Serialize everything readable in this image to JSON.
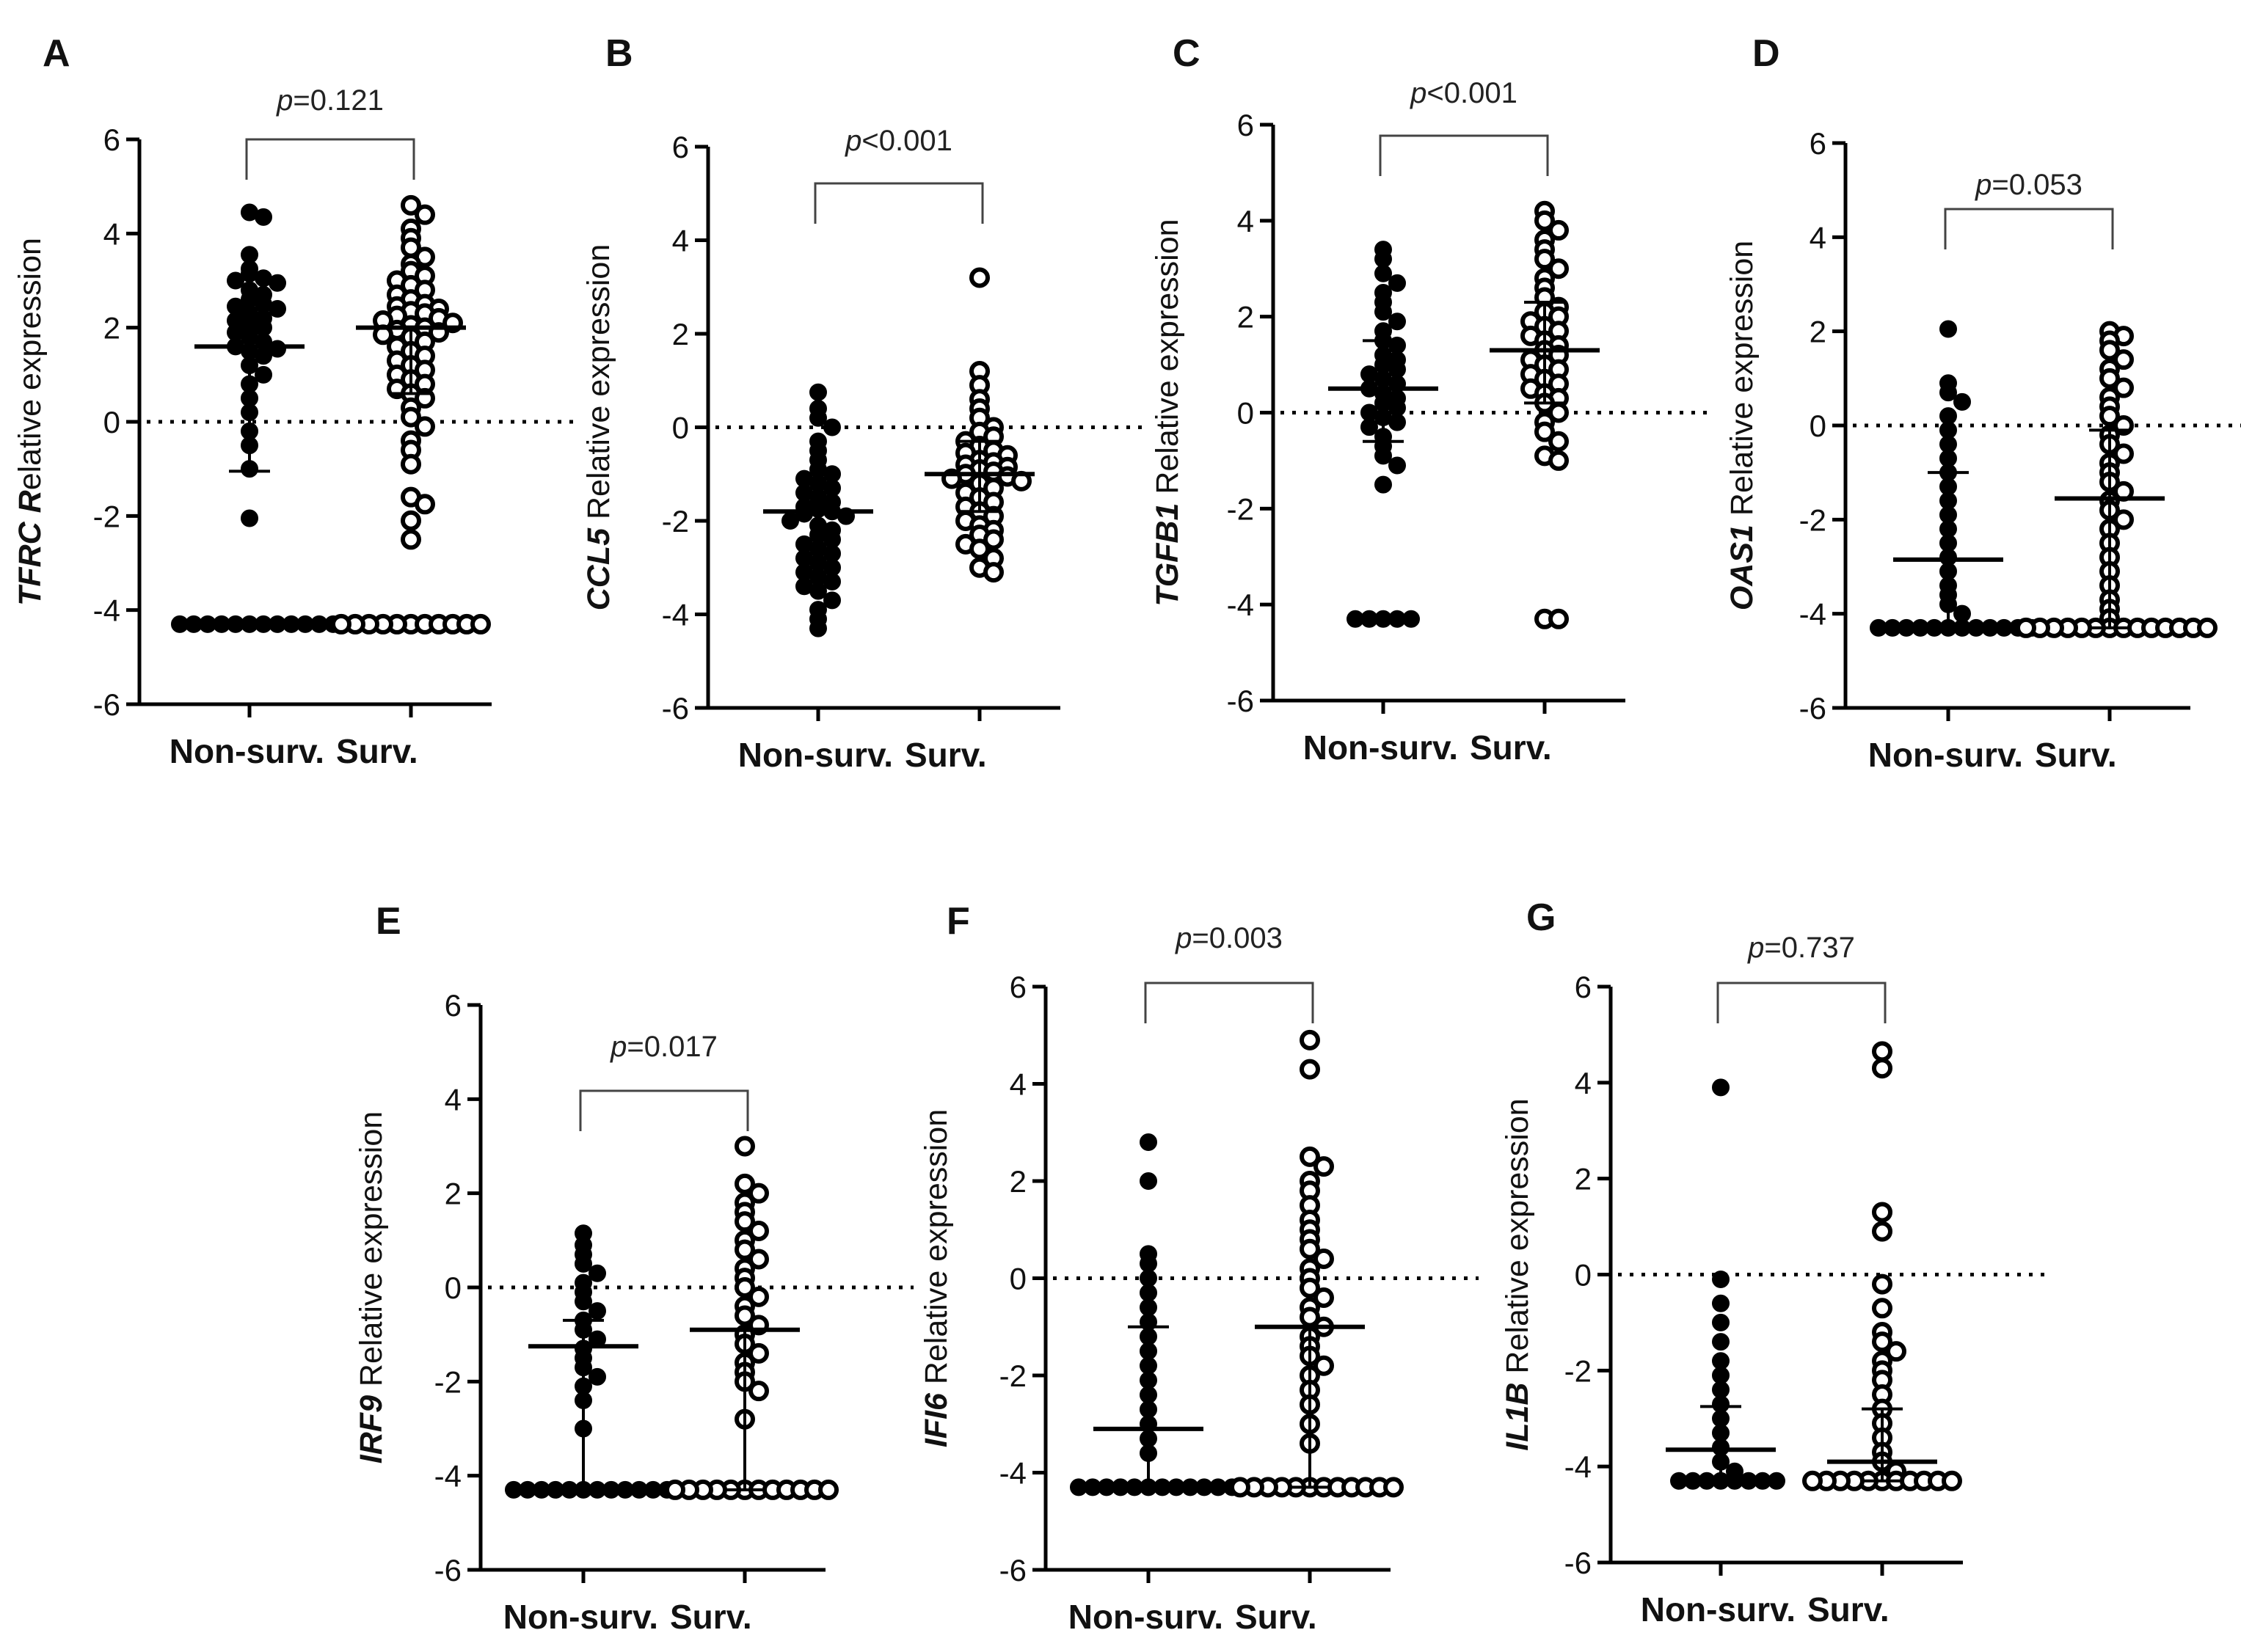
{
  "chart_data": [
    {
      "panel": "A",
      "type": "scatter",
      "gene": "TFRC R",
      "ylabel_suffix": "elative expression",
      "p_label": "p",
      "p_value": "=0.121",
      "ylim": [
        -6,
        6
      ],
      "yticks": [
        "6",
        "4",
        "2",
        "0",
        "-2",
        "-4",
        "-6"
      ],
      "categories": [
        "Non-surv.",
        "Surv."
      ],
      "series": [
        {
          "name": "Non-surv.",
          "marker": "filled",
          "mean": 1.6,
          "sd_low": -1.05,
          "sd_high": 1.6,
          "values": [
            4.45,
            4.35,
            3.55,
            3.25,
            3.15,
            3.05,
            3.0,
            2.95,
            2.8,
            2.7,
            2.6,
            2.5,
            2.45,
            2.4,
            2.3,
            2.2,
            2.15,
            2.05,
            2.0,
            1.9,
            1.8,
            1.7,
            1.6,
            1.55,
            1.5,
            1.4,
            1.2,
            1.0,
            0.8,
            0.5,
            0.2,
            -0.2,
            -0.5,
            -1.0,
            -2.05,
            -4.3,
            -4.3,
            -4.3,
            -4.3,
            -4.3,
            -4.3,
            -4.3,
            -4.3,
            -4.3,
            -4.3,
            -4.3,
            -4.3
          ]
        },
        {
          "name": "Surv.",
          "marker": "open",
          "mean": 2.0,
          "sd_low": 0.6,
          "sd_high": 2.0,
          "values": [
            4.6,
            4.4,
            4.1,
            3.9,
            3.7,
            3.5,
            3.35,
            3.2,
            3.1,
            3.0,
            2.9,
            2.8,
            2.7,
            2.6,
            2.5,
            2.45,
            2.4,
            2.35,
            2.3,
            2.25,
            2.2,
            2.15,
            2.1,
            2.05,
            2.0,
            1.95,
            1.9,
            1.85,
            1.8,
            1.7,
            1.6,
            1.5,
            1.4,
            1.3,
            1.2,
            1.1,
            1.0,
            0.9,
            0.8,
            0.7,
            0.6,
            0.5,
            0.3,
            0.1,
            -0.1,
            -0.4,
            -0.6,
            -0.9,
            -1.6,
            -1.75,
            -2.1,
            -2.5,
            -4.3,
            -4.3,
            -4.3,
            -4.3,
            -4.3,
            -4.3,
            -4.3,
            -4.3,
            -4.3,
            -4.3,
            -4.3
          ]
        }
      ]
    },
    {
      "panel": "B",
      "type": "scatter",
      "gene": "CCL5",
      "ylabel_suffix": " Relative expression",
      "p_label": "p",
      "p_value": "<0.001",
      "ylim": [
        -6,
        6
      ],
      "yticks": [
        "6",
        "4",
        "2",
        "0",
        "-2",
        "-4",
        "-6"
      ],
      "categories": [
        "Non-surv.",
        "Surv."
      ],
      "series": [
        {
          "name": "Non-surv.",
          "marker": "filled",
          "mean": -1.8,
          "sd_low": -2.4,
          "sd_high": -1.2,
          "values": [
            0.75,
            0.4,
            0.2,
            0.0,
            -0.3,
            -0.5,
            -0.7,
            -0.9,
            -1.0,
            -1.1,
            -1.2,
            -1.3,
            -1.4,
            -1.5,
            -1.6,
            -1.7,
            -1.75,
            -1.8,
            -1.85,
            -1.9,
            -2.0,
            -2.1,
            -2.2,
            -2.3,
            -2.4,
            -2.5,
            -2.6,
            -2.7,
            -2.8,
            -2.9,
            -3.0,
            -3.1,
            -3.2,
            -3.3,
            -3.4,
            -3.5,
            -3.7,
            -3.9,
            -4.1,
            -4.3
          ]
        },
        {
          "name": "Surv.",
          "marker": "open",
          "mean": -1.0,
          "sd_low": -1.8,
          "sd_high": -0.3,
          "values": [
            3.2,
            1.2,
            0.9,
            0.6,
            0.4,
            0.2,
            0.0,
            -0.1,
            -0.2,
            -0.3,
            -0.4,
            -0.5,
            -0.55,
            -0.6,
            -0.7,
            -0.75,
            -0.8,
            -0.85,
            -0.9,
            -0.95,
            -1.0,
            -1.05,
            -1.1,
            -1.15,
            -1.2,
            -1.3,
            -1.4,
            -1.5,
            -1.6,
            -1.7,
            -1.8,
            -1.9,
            -2.0,
            -2.1,
            -2.2,
            -2.3,
            -2.4,
            -2.5,
            -2.6,
            -2.8,
            -3.0,
            -3.1
          ]
        }
      ]
    },
    {
      "panel": "C",
      "type": "scatter",
      "gene": "TGFB1",
      "ylabel_suffix": " Relative expression",
      "p_label": "p",
      "p_value": "<0.001",
      "ylim": [
        -6,
        6
      ],
      "yticks": [
        "6",
        "4",
        "2",
        "0",
        "-2",
        "-4",
        "-6"
      ],
      "categories": [
        "Non-surv.",
        "Surv."
      ],
      "series": [
        {
          "name": "Non-surv.",
          "marker": "filled",
          "mean": 0.5,
          "sd_low": -0.6,
          "sd_high": 1.5,
          "values": [
            3.4,
            3.2,
            2.9,
            2.7,
            2.5,
            2.3,
            2.1,
            1.9,
            1.7,
            1.5,
            1.4,
            1.2,
            1.1,
            1.0,
            0.9,
            0.8,
            0.7,
            0.6,
            0.5,
            0.4,
            0.3,
            0.2,
            0.1,
            0.0,
            -0.1,
            -0.2,
            -0.3,
            -0.5,
            -0.7,
            -0.9,
            -1.1,
            -1.5,
            -4.3,
            -4.3,
            -4.3,
            -4.3,
            -4.3
          ]
        },
        {
          "name": "Surv.",
          "marker": "open",
          "mean": 1.3,
          "sd_low": 0.2,
          "sd_high": 2.3,
          "values": [
            4.2,
            4.0,
            3.8,
            3.6,
            3.4,
            3.2,
            3.0,
            2.8,
            2.6,
            2.4,
            2.2,
            2.1,
            2.0,
            1.9,
            1.8,
            1.7,
            1.6,
            1.5,
            1.4,
            1.3,
            1.2,
            1.1,
            1.0,
            0.9,
            0.8,
            0.7,
            0.6,
            0.5,
            0.4,
            0.3,
            0.2,
            0.0,
            -0.2,
            -0.4,
            -0.6,
            -0.9,
            -1.0,
            -4.3,
            -4.3
          ]
        }
      ]
    },
    {
      "panel": "D",
      "type": "scatter",
      "gene": "OAS1",
      "ylabel_suffix": " Relative expression",
      "p_label": "p",
      "p_value": "=0.053",
      "ylim": [
        -6,
        6
      ],
      "yticks": [
        "6",
        "4",
        "2",
        "0",
        "-2",
        "-4",
        "-6"
      ],
      "categories": [
        "Non-surv.",
        "Surv."
      ],
      "series": [
        {
          "name": "Non-surv.",
          "marker": "filled",
          "mean": -2.85,
          "sd_low": -4.3,
          "sd_high": -1.0,
          "values": [
            2.05,
            0.9,
            0.7,
            0.5,
            0.2,
            -0.1,
            -0.4,
            -0.7,
            -1.0,
            -1.3,
            -1.6,
            -1.9,
            -2.2,
            -2.5,
            -2.8,
            -3.1,
            -3.4,
            -3.6,
            -3.8,
            -4.0,
            -4.3,
            -4.3,
            -4.3,
            -4.3,
            -4.3,
            -4.3,
            -4.3,
            -4.3,
            -4.3,
            -4.3,
            -4.3,
            -4.3
          ]
        },
        {
          "name": "Surv.",
          "marker": "open",
          "mean": -1.55,
          "sd_low": -4.3,
          "sd_high": -0.1,
          "values": [
            2.0,
            1.9,
            1.8,
            1.6,
            1.4,
            1.2,
            1.0,
            0.8,
            0.6,
            0.4,
            0.2,
            0.0,
            -0.2,
            -0.4,
            -0.6,
            -0.8,
            -1.0,
            -1.2,
            -1.4,
            -1.6,
            -1.8,
            -2.0,
            -2.2,
            -2.5,
            -2.8,
            -3.1,
            -3.4,
            -3.7,
            -3.9,
            -4.1,
            -4.3,
            -4.3,
            -4.3,
            -4.3,
            -4.3,
            -4.3,
            -4.3,
            -4.3,
            -4.3,
            -4.3,
            -4.3,
            -4.3,
            -4.3,
            -4.3
          ]
        }
      ]
    },
    {
      "panel": "E",
      "type": "scatter",
      "gene": "IRF9",
      "ylabel_suffix": " Relative expression",
      "p_label": "p",
      "p_value": "=0.017",
      "ylim": [
        -6,
        6
      ],
      "yticks": [
        "6",
        "4",
        "2",
        "0",
        "-2",
        "-4",
        "-6"
      ],
      "categories": [
        "Non-surv.",
        "Surv."
      ],
      "series": [
        {
          "name": "Non-surv.",
          "marker": "filled",
          "mean": -1.25,
          "sd_low": -4.3,
          "sd_high": -0.7,
          "values": [
            1.15,
            0.9,
            0.7,
            0.5,
            0.3,
            0.1,
            -0.1,
            -0.3,
            -0.5,
            -0.7,
            -0.9,
            -1.1,
            -1.3,
            -1.5,
            -1.7,
            -1.9,
            -2.1,
            -2.4,
            -3.0,
            -4.3,
            -4.3,
            -4.3,
            -4.3,
            -4.3,
            -4.3,
            -4.3,
            -4.3,
            -4.3,
            -4.3,
            -4.3,
            -4.3
          ]
        },
        {
          "name": "Surv.",
          "marker": "open",
          "mean": -0.9,
          "sd_low": -4.3,
          "sd_high": -0.9,
          "values": [
            3.0,
            2.2,
            2.0,
            1.8,
            1.6,
            1.4,
            1.2,
            1.0,
            0.8,
            0.6,
            0.4,
            0.2,
            0.0,
            -0.2,
            -0.4,
            -0.6,
            -0.8,
            -1.0,
            -1.2,
            -1.4,
            -1.6,
            -1.8,
            -2.0,
            -2.2,
            -2.8,
            -4.3,
            -4.3,
            -4.3,
            -4.3,
            -4.3,
            -4.3,
            -4.3,
            -4.3,
            -4.3,
            -4.3,
            -4.3,
            -4.3
          ]
        }
      ]
    },
    {
      "panel": "F",
      "type": "scatter",
      "gene": "IFI6",
      "ylabel_suffix": " Relative expression",
      "p_label": "p",
      "p_value": "=0.003",
      "ylim": [
        -6,
        6
      ],
      "yticks": [
        "6",
        "4",
        "2",
        "0",
        "-2",
        "-4",
        "-6"
      ],
      "categories": [
        "Non-surv.",
        "Surv."
      ],
      "series": [
        {
          "name": "Non-surv.",
          "marker": "filled",
          "mean": -3.1,
          "sd_low": -4.3,
          "sd_high": -1.0,
          "values": [
            2.8,
            2.0,
            0.5,
            0.3,
            0.0,
            -0.3,
            -0.6,
            -0.9,
            -1.2,
            -1.5,
            -1.8,
            -2.1,
            -2.4,
            -2.7,
            -3.0,
            -3.3,
            -3.6,
            -4.3,
            -4.3,
            -4.3,
            -4.3,
            -4.3,
            -4.3,
            -4.3,
            -4.3,
            -4.3,
            -4.3,
            -4.3,
            -4.3
          ]
        },
        {
          "name": "Surv.",
          "marker": "open",
          "mean": -1.0,
          "sd_low": -4.3,
          "sd_high": -1.0,
          "values": [
            4.9,
            4.3,
            2.5,
            2.3,
            2.0,
            1.8,
            1.5,
            1.2,
            1.0,
            0.8,
            0.6,
            0.4,
            0.2,
            0.0,
            -0.2,
            -0.4,
            -0.6,
            -0.8,
            -1.0,
            -1.2,
            -1.4,
            -1.6,
            -1.8,
            -2.0,
            -2.3,
            -2.6,
            -3.0,
            -3.4,
            -4.3,
            -4.3,
            -4.3,
            -4.3,
            -4.3,
            -4.3,
            -4.3,
            -4.3,
            -4.3,
            -4.3,
            -4.3,
            -4.3
          ]
        }
      ]
    },
    {
      "panel": "G",
      "type": "scatter",
      "gene": "IL1B",
      "ylabel_suffix": " Relative expression",
      "p_label": "p",
      "p_value": "=0.737",
      "ylim": [
        -6,
        6
      ],
      "yticks": [
        "6",
        "4",
        "2",
        "0",
        "-2",
        "-4",
        "-6"
      ],
      "categories": [
        "Non-surv.",
        "Surv."
      ],
      "series": [
        {
          "name": "Non-surv.",
          "marker": "filled",
          "mean": -3.65,
          "sd_low": -4.3,
          "sd_high": -2.75,
          "values": [
            3.9,
            -0.1,
            -0.6,
            -1.0,
            -1.4,
            -1.8,
            -2.1,
            -2.4,
            -2.7,
            -3.0,
            -3.3,
            -3.6,
            -3.9,
            -4.1,
            -4.3,
            -4.3,
            -4.3,
            -4.3,
            -4.3,
            -4.3,
            -4.3,
            -4.3
          ]
        },
        {
          "name": "Surv.",
          "marker": "open",
          "mean": -3.9,
          "sd_low": -4.3,
          "sd_high": -2.8,
          "values": [
            4.65,
            4.3,
            1.3,
            0.9,
            -0.2,
            -0.7,
            -1.2,
            -1.4,
            -1.6,
            -1.8,
            -2.0,
            -2.2,
            -2.5,
            -2.8,
            -3.1,
            -3.4,
            -3.7,
            -3.9,
            -4.1,
            -4.3,
            -4.3,
            -4.3,
            -4.3,
            -4.3,
            -4.3,
            -4.3,
            -4.3,
            -4.3,
            -4.3,
            -4.3
          ]
        }
      ]
    }
  ]
}
